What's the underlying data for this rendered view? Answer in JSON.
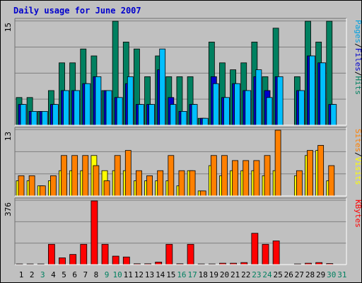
{
  "chart_data": [
    {
      "type": "bar",
      "title": "Daily usage for June 2007",
      "ymax_label": "15",
      "right_labels": [
        {
          "text": "Pages",
          "color": "#00a0e0"
        },
        {
          "text": "Files",
          "color": "#0000cc"
        },
        {
          "text": "Hits",
          "color": "#008060"
        }
      ],
      "ylim": [
        0,
        15
      ],
      "categories": [
        1,
        2,
        3,
        4,
        5,
        6,
        7,
        8,
        9,
        10,
        11,
        12,
        13,
        14,
        15,
        16,
        17,
        18,
        19,
        20,
        21,
        22,
        23,
        24,
        25,
        26,
        27,
        28,
        29,
        30,
        31
      ],
      "series": [
        {
          "name": "Hits",
          "color": "#008060",
          "values": [
            4,
            4,
            2,
            5,
            9,
            9,
            11,
            10,
            5,
            15,
            12,
            11,
            7,
            10,
            7,
            7,
            7,
            1,
            12,
            9,
            8,
            9,
            12,
            7,
            14,
            0,
            7,
            15,
            12,
            15,
            0
          ]
        },
        {
          "name": "Files",
          "color": "#0000cc",
          "values": [
            3,
            2,
            2,
            3,
            5,
            5,
            6,
            7,
            5,
            4,
            6,
            3,
            3,
            8,
            4,
            2,
            3,
            1,
            7,
            4,
            6,
            5,
            7,
            5,
            7,
            0,
            5,
            10,
            9,
            3,
            0
          ]
        },
        {
          "name": "Pages",
          "color": "#00bfff",
          "values": [
            3,
            2,
            2,
            3,
            5,
            5,
            6,
            7,
            5,
            4,
            7,
            3,
            3,
            11,
            3,
            2,
            3,
            1,
            6,
            4,
            6,
            5,
            8,
            4,
            7,
            0,
            5,
            10,
            9,
            3,
            0
          ]
        }
      ]
    },
    {
      "type": "bar",
      "ymax_label": "13",
      "right_labels": [
        {
          "text": "Sites",
          "color": "#ff8000"
        },
        {
          "text": "Visits",
          "color": "#ffff00"
        }
      ],
      "ylim": [
        0,
        13
      ],
      "categories": [
        1,
        2,
        3,
        4,
        5,
        6,
        7,
        8,
        9,
        10,
        11,
        12,
        13,
        14,
        15,
        16,
        17,
        18,
        19,
        20,
        21,
        22,
        23,
        24,
        25,
        26,
        27,
        28,
        29,
        30,
        31
      ],
      "series": [
        {
          "name": "Visits",
          "color": "#ffff00",
          "values": [
            3,
            3,
            2,
            3,
            5,
            5,
            5,
            8,
            5,
            5,
            5,
            3,
            3,
            3,
            3,
            2,
            5,
            1,
            6,
            4,
            5,
            5,
            5,
            4,
            5,
            0,
            4,
            8,
            9,
            3,
            0
          ]
        },
        {
          "name": "Sites",
          "color": "#ff8000",
          "values": [
            4,
            4,
            2,
            4,
            8,
            8,
            8,
            6,
            3,
            8,
            9,
            5,
            4,
            5,
            8,
            5,
            5,
            1,
            8,
            8,
            7,
            7,
            7,
            8,
            13,
            0,
            5,
            9,
            10,
            6,
            0
          ]
        }
      ]
    },
    {
      "type": "bar",
      "ymax_label": "376",
      "right_labels": [
        {
          "text": "KBytes",
          "color": "#ff0000"
        }
      ],
      "ylim": [
        0,
        376
      ],
      "categories": [
        1,
        2,
        3,
        4,
        5,
        6,
        7,
        8,
        9,
        10,
        11,
        12,
        13,
        14,
        15,
        16,
        17,
        18,
        19,
        20,
        21,
        22,
        23,
        24,
        25,
        26,
        27,
        28,
        29,
        30,
        31
      ],
      "series": [
        {
          "name": "KBytes",
          "color": "#ff0000",
          "values": [
            4,
            4,
            4,
            120,
            40,
            60,
            120,
            376,
            120,
            50,
            45,
            5,
            5,
            15,
            120,
            5,
            120,
            4,
            4,
            8,
            8,
            12,
            185,
            120,
            140,
            0,
            4,
            8,
            12,
            6,
            0
          ]
        }
      ]
    }
  ],
  "day_colors": [
    "#000000",
    "#000000",
    "#008060",
    "#000000",
    "#000000",
    "#000000",
    "#000000",
    "#000000",
    "#008060",
    "#008060",
    "#000000",
    "#000000",
    "#000000",
    "#000000",
    "#000000",
    "#008060",
    "#008060",
    "#000000",
    "#000000",
    "#000000",
    "#000000",
    "#000000",
    "#008060",
    "#008060",
    "#000000",
    "#000000",
    "#000000",
    "#000000",
    "#000000",
    "#008060",
    "#008060"
  ]
}
